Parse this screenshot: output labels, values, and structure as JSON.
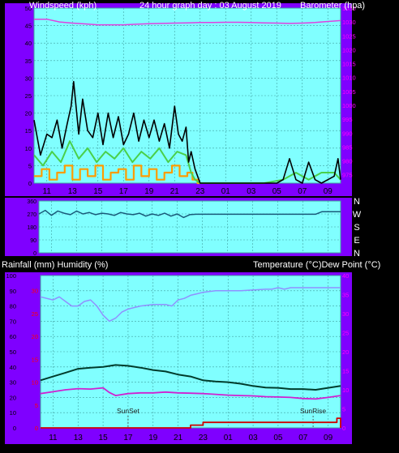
{
  "colors": {
    "frame": "#7f00ff",
    "plot_bg": "#80ffff",
    "grid": "#40a0a0",
    "gust": "#000000",
    "avg_speed": "#4ad04a",
    "wind_band": "#ff9c00",
    "pressure": "#e040e0",
    "direction": "#1a5a7a",
    "humidity": "#9090ff",
    "temperature": "#003c2c",
    "dew_point": "#d020d0",
    "rainfall": "#d00000",
    "left_axis_text": "#000000",
    "right_axis_text": "#ff00ff",
    "rain_axis_text": "#ff0000",
    "header_text": "#ffffff"
  },
  "top": {
    "header_left": "Windspeed (kph)",
    "header_center": "24 hour graph day : 03 August 2019",
    "header_right": "Barometer (hpa)"
  },
  "middle": {
    "compass": [
      "N",
      "W",
      "S",
      "E",
      "N"
    ]
  },
  "bottom": {
    "header_left": "Rainfall (mm)  Humidity (%)",
    "header_right": "Temperature (°C)Dew Point (°C)",
    "sunset_label": "SunSet",
    "sunrise_label": "SunRise"
  },
  "chart_data": [
    {
      "type": "line",
      "title": "24 hour graph day : 03 August 2019",
      "ylabel": "Windspeed (kph)",
      "y2label": "Barometer (hpa)",
      "xticks": [
        "11",
        "13",
        "15",
        "17",
        "19",
        "21",
        "23",
        "01",
        "03",
        "05",
        "07",
        "09"
      ],
      "yticks": [
        0,
        5,
        10,
        15,
        20,
        25,
        30,
        35,
        40,
        45,
        50
      ],
      "ylim": [
        0,
        50
      ],
      "y2ticks": [
        975,
        980,
        985,
        990,
        995,
        1000,
        1005,
        1010,
        1015,
        1020,
        1025,
        1030,
        1035
      ],
      "y2lim": [
        972,
        1035
      ],
      "grid": true,
      "series": [
        {
          "axis": "left",
          "x_hours": [
            10,
            10.5,
            11,
            11.4,
            11.8,
            12.2,
            12.6,
            12.9,
            13.1,
            13.5,
            13.8,
            14.2,
            14.6,
            15,
            15.4,
            15.8,
            16.2,
            16.6,
            17,
            17.4,
            17.8,
            18.2,
            18.6,
            19,
            19.4,
            19.8,
            20.2,
            20.6,
            21,
            21.3,
            21.6,
            21.9,
            22.1,
            22.3,
            22.6,
            23,
            24,
            25,
            26,
            27,
            28,
            29,
            29.5,
            30,
            30.5,
            31,
            31.5,
            32,
            32.5,
            33,
            33.5,
            33.8,
            34
          ],
          "y": [
            18,
            8,
            14,
            13,
            18,
            10,
            17,
            22,
            29,
            14,
            24,
            15,
            13,
            20,
            11,
            20,
            13,
            19,
            11,
            14,
            20,
            12,
            18,
            13,
            18,
            12,
            17,
            10,
            22,
            14,
            12,
            16,
            6,
            9,
            4,
            0,
            0,
            0,
            0,
            0,
            0,
            0,
            1,
            7,
            1,
            0,
            6,
            1,
            0,
            1,
            2,
            7,
            1
          ]
        },
        {
          "axis": "left",
          "x_hours": [
            10,
            10.7,
            11.4,
            12.1,
            12.8,
            13.5,
            14.2,
            14.9,
            15.6,
            16.3,
            17,
            17.7,
            18.4,
            19.1,
            19.8,
            20.5,
            21.2,
            21.9,
            22.3,
            22.6,
            23,
            24,
            28,
            29.5,
            30.5,
            31.5,
            32.5,
            33.5,
            34
          ],
          "y": [
            8,
            5,
            9,
            6,
            12,
            7,
            10,
            6,
            9,
            7,
            10,
            6,
            9,
            7,
            10,
            6,
            9,
            8,
            3,
            1,
            0,
            0,
            0,
            1,
            3,
            1,
            3,
            3,
            1
          ]
        },
        {
          "axis": "left",
          "x_hours": [
            10,
            10.6,
            11.2,
            11.8,
            12.4,
            13,
            13.6,
            14.2,
            14.8,
            15.4,
            16,
            16.6,
            17.2,
            17.8,
            18.4,
            19,
            19.6,
            20.2,
            20.8,
            21.4,
            22,
            22.4,
            22.8,
            23
          ],
          "y": [
            2,
            4,
            1,
            3,
            5,
            1,
            4,
            2,
            5,
            1,
            3,
            4,
            1,
            5,
            2,
            4,
            1,
            3,
            5,
            2,
            3,
            1,
            0,
            0
          ]
        },
        {
          "axis": "right",
          "x_hours": [
            10,
            11,
            12,
            13,
            14,
            15,
            16,
            17,
            18,
            19,
            20,
            21,
            22,
            23,
            24,
            25,
            26,
            27,
            28,
            29,
            30,
            31,
            32,
            33,
            34
          ],
          "y": [
            1031,
            1031,
            1030,
            1029.6,
            1029.3,
            1029,
            1029,
            1029,
            1029.2,
            1029.4,
            1029.5,
            1029.6,
            1029.7,
            1029.8,
            1029.8,
            1029.9,
            1029.9,
            1029.8,
            1029.7,
            1029.6,
            1029.5,
            1029.6,
            1029.8,
            1030.2,
            1030.5
          ]
        }
      ]
    },
    {
      "type": "line",
      "xticks": [],
      "yticks": [
        0,
        90,
        180,
        270,
        360
      ],
      "ylim": [
        0,
        360
      ],
      "grid": true,
      "series": [
        {
          "x_hours": [
            10,
            10.5,
            11,
            11.5,
            12,
            12.5,
            13,
            13.5,
            14,
            14.5,
            15,
            15.5,
            16,
            16.5,
            17,
            17.5,
            18,
            18.5,
            19,
            19.5,
            20,
            20.5,
            21,
            21.5,
            22,
            22.5,
            23,
            24,
            26,
            28,
            30,
            32,
            32.5,
            33,
            34
          ],
          "y": [
            270,
            295,
            260,
            290,
            275,
            265,
            290,
            270,
            280,
            265,
            275,
            270,
            260,
            280,
            270,
            265,
            275,
            255,
            270,
            260,
            275,
            255,
            270,
            245,
            265,
            268,
            268,
            268,
            268,
            268,
            268,
            268,
            285,
            285,
            285
          ]
        }
      ]
    },
    {
      "type": "line",
      "ylabel": "Rainfall (mm)  Humidity (%)",
      "y2label": "Temperature (°C)Dew Point (°C)",
      "xticks": [
        "11",
        "13",
        "15",
        "17",
        "19",
        "21",
        "23",
        "01",
        "03",
        "05",
        "07",
        "09"
      ],
      "yticks": [
        0,
        10,
        20,
        30,
        40,
        50,
        60,
        70,
        80,
        90,
        100
      ],
      "ylim": [
        0,
        100
      ],
      "rain_ticks": [
        0,
        5,
        10,
        15,
        20,
        25,
        30
      ],
      "rain_lim": [
        0,
        33.3
      ],
      "y2ticks": [
        0,
        5,
        10,
        15,
        20,
        25,
        30,
        35,
        40
      ],
      "y2lim": [
        0,
        40
      ],
      "grid": true,
      "annotations": [
        {
          "label": "SunSet",
          "x_hours": 17
        },
        {
          "label": "SunRise",
          "x_hours": 31.8
        }
      ],
      "series": [
        {
          "axis": "left",
          "x_hours": [
            10,
            11,
            11.5,
            12,
            12.5,
            13,
            13.5,
            14,
            14.5,
            15,
            15.5,
            16,
            16.5,
            17,
            17.5,
            18,
            19,
            20,
            20.5,
            21,
            21.5,
            22,
            22.5,
            23,
            24,
            26,
            28,
            28.5,
            29,
            29.5,
            30,
            31,
            32,
            33,
            34
          ],
          "y": [
            86,
            84,
            86,
            83,
            80,
            80,
            83,
            84,
            80,
            74,
            70,
            72,
            76,
            78,
            79,
            80,
            81,
            81,
            80,
            84,
            85,
            87,
            88,
            89,
            90,
            90,
            91,
            91,
            92,
            91,
            92,
            92,
            92,
            92,
            92
          ]
        },
        {
          "axis": "right",
          "x_hours": [
            10,
            11,
            12,
            13,
            14,
            15,
            16,
            17,
            18,
            19,
            20,
            21,
            22,
            23,
            24,
            25,
            26,
            27,
            28,
            29,
            30,
            31,
            32,
            33,
            34
          ],
          "y": [
            12.5,
            13.5,
            14.5,
            15.5,
            15.8,
            16,
            16.5,
            16.3,
            15.8,
            15.2,
            14.8,
            14,
            13.5,
            12.5,
            12.2,
            12,
            11.6,
            11,
            10.6,
            10.5,
            10.2,
            10.2,
            10,
            10.5,
            11
          ]
        },
        {
          "axis": "right",
          "x_hours": [
            10,
            11,
            12,
            13,
            14,
            15,
            15.5,
            16,
            17,
            18,
            19,
            20,
            21,
            22,
            23,
            24,
            25,
            26,
            27,
            28,
            29,
            30,
            31,
            32,
            33,
            34
          ],
          "y": [
            9,
            9.5,
            10,
            10.3,
            10.2,
            10.5,
            9.3,
            8.5,
            9,
            9.2,
            9.2,
            9.4,
            9.2,
            9.1,
            9,
            8.8,
            8.6,
            8.5,
            8.4,
            8.2,
            8.1,
            8,
            7.7,
            7.6,
            8,
            8.5
          ]
        },
        {
          "axis": "rain",
          "x_hours": [
            10,
            20,
            21.5,
            22,
            22.3,
            23,
            24,
            26,
            28,
            30,
            32,
            33.5,
            33.7,
            34
          ],
          "y": [
            0,
            0,
            0,
            0.6,
            0.6,
            1.2,
            1.2,
            1.2,
            1.2,
            1.2,
            1.2,
            1.2,
            2.1,
            0
          ]
        }
      ]
    }
  ]
}
